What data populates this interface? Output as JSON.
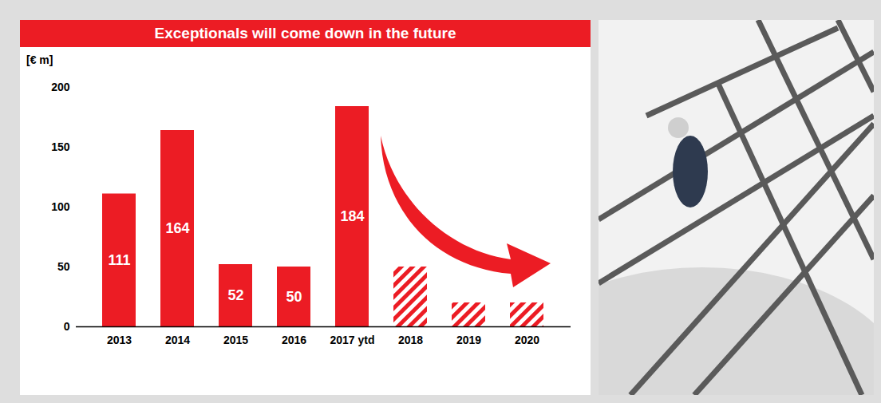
{
  "chart_data": {
    "type": "bar",
    "title": "Exceptionals will come down in the future",
    "y_label": "[€ m]",
    "categories": [
      "2013",
      "2014",
      "2015",
      "2016",
      "2017 ytd",
      "2018",
      "2019",
      "2020"
    ],
    "values": [
      111,
      164,
      52,
      50,
      184,
      50,
      20,
      20
    ],
    "value_labels": [
      "111",
      "164",
      "52",
      "50",
      "184",
      null,
      null,
      null
    ],
    "color": "#ec1c24",
    "ylim": [
      0,
      200
    ],
    "yticks": [
      0,
      50,
      100,
      150,
      200
    ],
    "grid": false,
    "data_labels": true
  }
}
